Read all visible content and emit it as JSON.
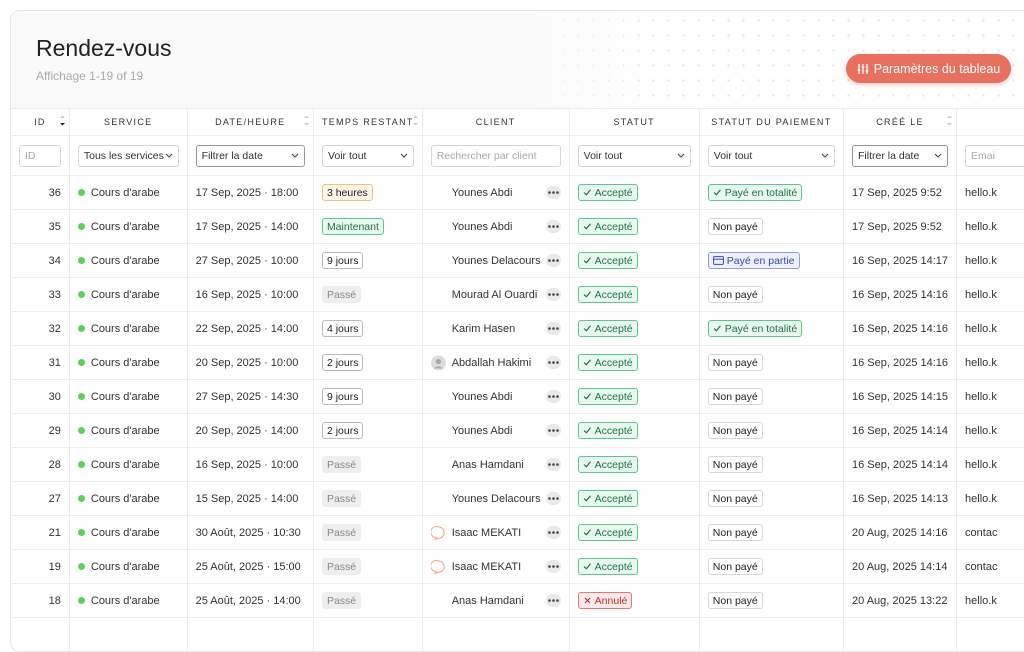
{
  "header": {
    "title": "Rendez-vous",
    "subtitle": "Affichage 1-19 of 19",
    "button": "Paramètres du tableau"
  },
  "table": {
    "columns": [
      "ID",
      "SERVICE",
      "DATE/HEURE",
      "TEMPS RESTANT",
      "CLIENT",
      "STATUT",
      "STATUT DU PAIEMENT",
      "CRÉÉ LE"
    ],
    "filters": [
      "ID",
      "Tous les services",
      "Filtrer la date",
      "Voir tout",
      "Rechercher par client",
      "Voir tout",
      "Voir tout",
      "Filtrer la date",
      "Emai"
    ],
    "rows": [
      [
        36,
        "Cours d'arabe",
        "17 Sep, 2025 · 18:00",
        "3 heures",
        "Younes Abdi",
        "Accepté",
        "Payé en totalité",
        "17 Sep, 2025 9:52",
        "hello.k"
      ],
      [
        35,
        "Cours d'arabe",
        "17 Sep, 2025 · 14:00",
        "Maintenant",
        "Younes Abdi",
        "Accepté",
        "Non payé",
        "17 Sep, 2025 9:52",
        "hello.k"
      ],
      [
        34,
        "Cours d'arabe",
        "27 Sep, 2025 · 10:00",
        "9 jours",
        "Younes Delacours",
        "Accepté",
        "Payé en partie",
        "16 Sep, 2025 14:17",
        "hello.k"
      ],
      [
        33,
        "Cours d'arabe",
        "16 Sep, 2025 · 10:00",
        "Passé",
        "Mourad Al Ouardi",
        "Accepté",
        "Non payé",
        "16 Sep, 2025 14:16",
        "hello.k"
      ],
      [
        32,
        "Cours d'arabe",
        "22 Sep, 2025 · 14:00",
        "4 jours",
        "Karim Hasen",
        "Accepté",
        "Payé en totalité",
        "16 Sep, 2025 14:16",
        "hello.k"
      ],
      [
        31,
        "Cours d'arabe",
        "20 Sep, 2025 · 10:00",
        "2 jours",
        "Abdallah Hakimi",
        "Accepté",
        "Non payé",
        "16 Sep, 2025 14:16",
        "hello.k"
      ],
      [
        30,
        "Cours d'arabe",
        "27 Sep, 2025 · 14:30",
        "9 jours",
        "Younes Abdi",
        "Accepté",
        "Non payé",
        "16 Sep, 2025 14:15",
        "hello.k"
      ],
      [
        29,
        "Cours d'arabe",
        "20 Sep, 2025 · 14:00",
        "2 jours",
        "Younes Abdi",
        "Accepté",
        "Non payé",
        "16 Sep, 2025 14:14",
        "hello.k"
      ],
      [
        28,
        "Cours d'arabe",
        "16 Sep, 2025 · 10:00",
        "Passé",
        "Anas Hamdani",
        "Accepté",
        "Non payé",
        "16 Sep, 2025 14:14",
        "hello.k"
      ],
      [
        27,
        "Cours d'arabe",
        "15 Sep, 2025 · 14:00",
        "Passé",
        "Younes Delacours",
        "Accepté",
        "Non payé",
        "16 Sep, 2025 14:13",
        "hello.k"
      ],
      [
        21,
        "Cours d'arabe",
        "30 Août, 2025 · 10:30",
        "Passé",
        "Isaac MEKATI",
        "Accepté",
        "Non payé",
        "20 Aug, 2025 14:16",
        "contac"
      ],
      [
        19,
        "Cours d'arabe",
        "25 Août, 2025 · 15:00",
        "Passé",
        "Isaac MEKATI",
        "Accepté",
        "Non payé",
        "20 Aug, 2025 14:14",
        "contac"
      ],
      [
        18,
        "Cours d'arabe",
        "25 Août, 2025 · 14:00",
        "Passé",
        "Anas Hamdani",
        "Annulé",
        "Non payé",
        "20 Aug, 2025 13:22",
        "hello.k"
      ]
    ]
  }
}
